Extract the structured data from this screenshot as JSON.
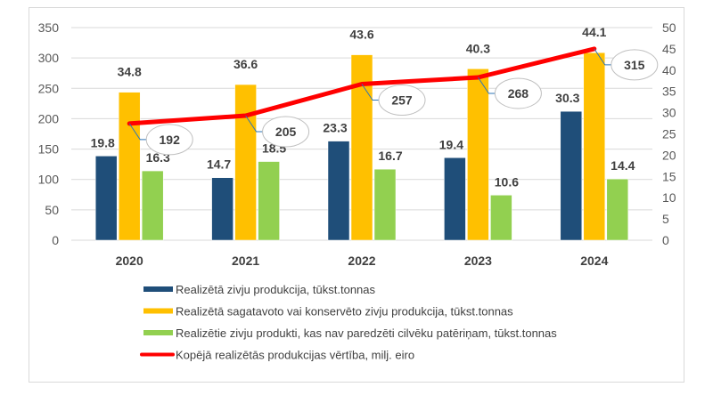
{
  "chart_data": {
    "type": "bar+line",
    "categories": [
      "2020",
      "2021",
      "2022",
      "2023",
      "2024"
    ],
    "series": [
      {
        "name": "Realizētā zivju produkcija, tūkst.tonnas",
        "type": "bar",
        "axis": "right",
        "color": "#1f4e79",
        "values": [
          19.8,
          14.7,
          23.3,
          19.4,
          30.3
        ]
      },
      {
        "name": "Realizētā sagatavoto vai konservēto zivju produkcija, tūkst.tonnas",
        "type": "bar",
        "axis": "right",
        "color": "#ffc000",
        "values": [
          34.8,
          36.6,
          43.6,
          40.3,
          44.1
        ]
      },
      {
        "name": "Realizētie zivju produkti, kas nav paredzēti cilvēku patēriņam, tūkst.tonnas",
        "type": "bar",
        "axis": "right",
        "color": "#92d050",
        "values": [
          16.3,
          18.5,
          16.7,
          10.6,
          14.4
        ]
      },
      {
        "name": "Kopējā realizētās produkcijas vērtība, milj. eiro",
        "type": "line",
        "axis": "left",
        "color": "#ff0000",
        "values": [
          192,
          205,
          257,
          268,
          315
        ]
      }
    ],
    "y_left": {
      "range": [
        0,
        350
      ],
      "ticks": [
        "0",
        "50",
        "100",
        "150",
        "200",
        "250",
        "300",
        "350"
      ]
    },
    "y_right": {
      "range": [
        0,
        50
      ],
      "ticks": [
        "0",
        "5",
        "10",
        "15",
        "20",
        "25",
        "30",
        "35",
        "40",
        "45",
        "50"
      ]
    },
    "grid": true,
    "legend": "bottom"
  }
}
